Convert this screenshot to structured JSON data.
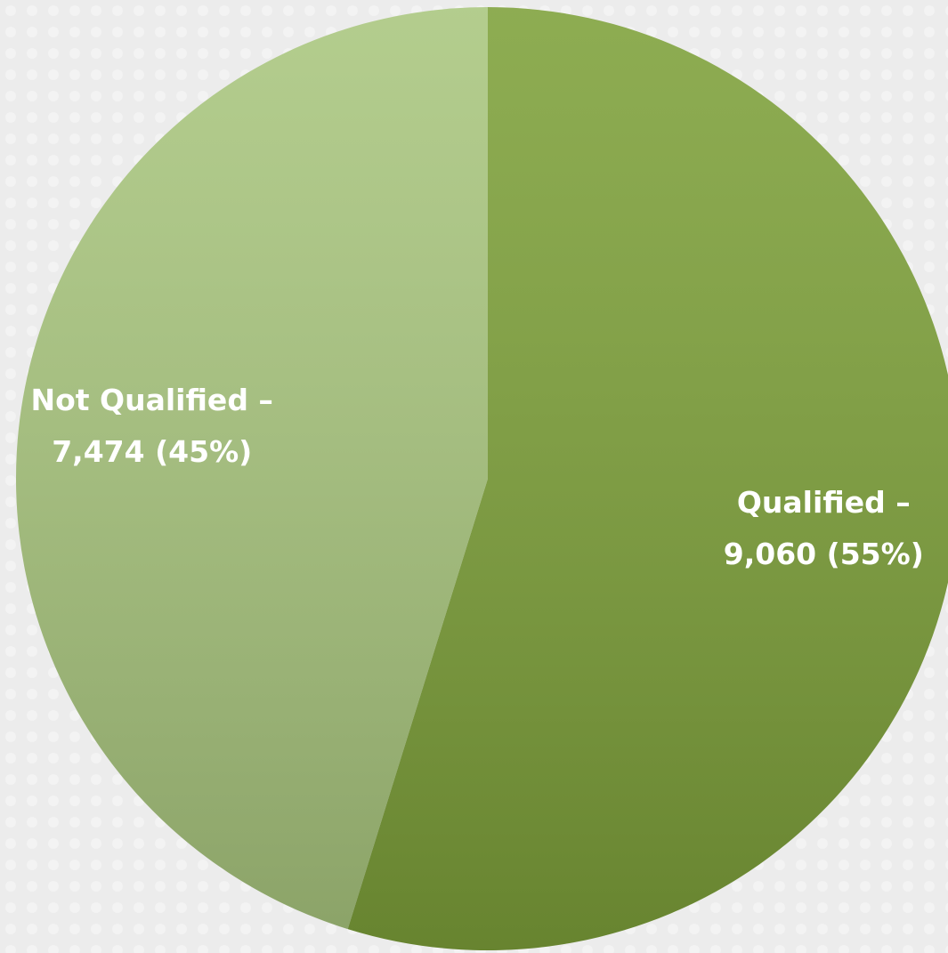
{
  "chart_data": {
    "type": "pie",
    "categories": [
      "Qualified –",
      "Not Qualified –"
    ],
    "values": [
      9060,
      7474
    ],
    "value_labels": [
      "9,060 (55%)",
      "7,474 (45%)"
    ],
    "colors": [
      "#7ea13a",
      "#a9c67e"
    ]
  }
}
